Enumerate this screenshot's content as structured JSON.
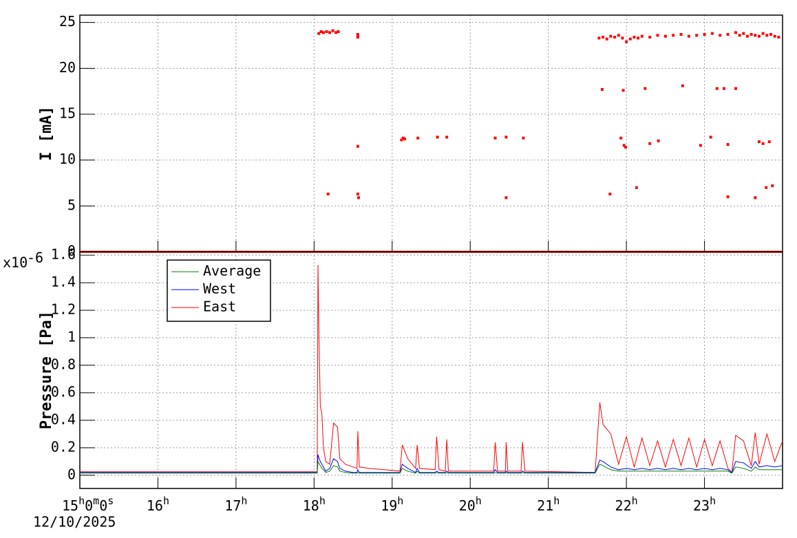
{
  "chart_data": [
    {
      "type": "scatter",
      "ylabel": "I [mA]",
      "xlim": [
        15,
        24
      ],
      "ylim": [
        0,
        25.8
      ],
      "xticks": [
        15,
        16,
        17,
        18,
        19,
        20,
        21,
        22,
        23
      ],
      "yticks": [
        0,
        5,
        10,
        15,
        20,
        25
      ],
      "grid": true,
      "series": [
        {
          "color": "#ff0000",
          "mode": "markers",
          "x": [
            18.06,
            18.09,
            18.12,
            18.16,
            18.2,
            18.24,
            18.28,
            18.31,
            18.56,
            18.56,
            18.18,
            18.56,
            18.56,
            18.57,
            19.12,
            19.14,
            19.16,
            19.33,
            19.58,
            19.7,
            20.32,
            20.46,
            20.46,
            20.68,
            21.69,
            21.79,
            21.93,
            21.96,
            21.97,
            21.99,
            22.13,
            22.24,
            22.3,
            22.41,
            22.72,
            22.95,
            23.08,
            23.16,
            23.25,
            23.3,
            23.3,
            23.4,
            23.65,
            23.7,
            23.75,
            23.79,
            23.83,
            23.87,
            21.65,
            21.7,
            21.75,
            21.8,
            21.85,
            21.9,
            21.95,
            22.0,
            22.05,
            22.1,
            22.15,
            22.2,
            22.3,
            22.4,
            22.5,
            22.6,
            22.7,
            22.8,
            22.9,
            23.0,
            23.1,
            23.2,
            23.3,
            23.4,
            23.45,
            23.5,
            23.55,
            23.6,
            23.65,
            23.7,
            23.75,
            23.8,
            23.85,
            23.9,
            23.95
          ],
          "values": [
            23.8,
            24.0,
            23.9,
            24.0,
            23.9,
            24.1,
            23.9,
            24.0,
            23.7,
            23.4,
            6.3,
            11.5,
            6.3,
            5.9,
            12.2,
            12.4,
            12.3,
            12.4,
            12.5,
            12.5,
            12.4,
            12.5,
            5.9,
            12.4,
            17.7,
            6.3,
            12.4,
            17.6,
            11.6,
            11.4,
            7.0,
            17.8,
            11.8,
            12.1,
            18.1,
            11.6,
            12.5,
            17.8,
            17.8,
            11.7,
            6.0,
            17.8,
            5.9,
            12.0,
            11.8,
            7.0,
            12.0,
            7.2,
            23.3,
            23.4,
            23.2,
            23.5,
            23.4,
            23.6,
            23.3,
            22.9,
            23.2,
            23.4,
            23.3,
            23.5,
            23.4,
            23.6,
            23.5,
            23.6,
            23.7,
            23.5,
            23.6,
            23.7,
            23.8,
            23.6,
            23.7,
            23.9,
            23.6,
            23.8,
            23.5,
            23.7,
            23.6,
            23.5,
            23.8,
            23.6,
            23.7,
            23.5,
            23.4
          ]
        },
        {
          "color": "#ff0000",
          "mode": "line",
          "x": [
            15,
            24
          ],
          "values": [
            0,
            0
          ]
        }
      ]
    },
    {
      "type": "line",
      "ylabel": "Pressure [Pa]",
      "y_multiplier": {
        "base": "x10",
        "exponent": "-6"
      },
      "date_label": "12/10/2025",
      "xlim": [
        15,
        24
      ],
      "ylim": [
        -0.096,
        1.625
      ],
      "xticks": [
        {
          "value": 15,
          "label": "15h0m0s"
        },
        {
          "value": 16,
          "label": "16h"
        },
        {
          "value": 17,
          "label": "17h"
        },
        {
          "value": 18,
          "label": "18h"
        },
        {
          "value": 19,
          "label": "19h"
        },
        {
          "value": 20,
          "label": "20h"
        },
        {
          "value": 21,
          "label": "21h"
        },
        {
          "value": 22,
          "label": "22h"
        },
        {
          "value": 23,
          "label": "23h"
        }
      ],
      "yticks": [
        0,
        0.2,
        0.4,
        0.6,
        0.8,
        1,
        1.2,
        1.4,
        1.6
      ],
      "grid": true,
      "legend": "top-left",
      "x": [
        15,
        16,
        17,
        18,
        18.04,
        18.05,
        18.06,
        18.08,
        18.1,
        18.12,
        18.15,
        18.2,
        18.25,
        18.3,
        18.33,
        18.4,
        18.5,
        18.55,
        18.56,
        18.58,
        18.7,
        18.9,
        19.1,
        19.13,
        19.2,
        19.3,
        19.32,
        19.35,
        19.55,
        19.57,
        19.6,
        19.68,
        19.7,
        19.72,
        20.3,
        20.32,
        20.35,
        20.45,
        20.46,
        20.48,
        20.65,
        20.67,
        20.7,
        21.6,
        21.66,
        21.7,
        21.8,
        21.9,
        22.0,
        22.1,
        22.2,
        22.3,
        22.4,
        22.5,
        22.6,
        22.7,
        22.8,
        22.9,
        23.0,
        23.1,
        23.2,
        23.3,
        23.35,
        23.4,
        23.5,
        23.6,
        23.65,
        23.7,
        23.8,
        23.9,
        24
      ],
      "series": [
        {
          "name": "Average",
          "color": "#008000",
          "values": [
            0.015,
            0.015,
            0.015,
            0.015,
            0.015,
            0.1,
            0.09,
            0.07,
            0.05,
            0.04,
            0.02,
            0.03,
            0.07,
            0.06,
            0.03,
            0.02,
            0.015,
            0.015,
            0.02,
            0.015,
            0.015,
            0.015,
            0.015,
            0.05,
            0.03,
            0.015,
            0.03,
            0.015,
            0.015,
            0.02,
            0.015,
            0.015,
            0.02,
            0.015,
            0.015,
            0.02,
            0.015,
            0.015,
            0.02,
            0.015,
            0.015,
            0.02,
            0.015,
            0.015,
            0.08,
            0.07,
            0.04,
            0.03,
            0.03,
            0.03,
            0.03,
            0.03,
            0.03,
            0.03,
            0.03,
            0.03,
            0.03,
            0.03,
            0.03,
            0.03,
            0.03,
            0.03,
            0.015,
            0.06,
            0.05,
            0.03,
            0.06,
            0.04,
            0.04,
            0.04,
            0.04
          ]
        },
        {
          "name": "West",
          "color": "#0000ff",
          "values": [
            0.02,
            0.02,
            0.02,
            0.02,
            0.02,
            0.15,
            0.13,
            0.1,
            0.08,
            0.06,
            0.03,
            0.05,
            0.12,
            0.1,
            0.05,
            0.03,
            0.02,
            0.02,
            0.04,
            0.02,
            0.02,
            0.02,
            0.02,
            0.08,
            0.05,
            0.02,
            0.05,
            0.02,
            0.02,
            0.03,
            0.02,
            0.02,
            0.03,
            0.02,
            0.02,
            0.04,
            0.02,
            0.02,
            0.03,
            0.02,
            0.02,
            0.03,
            0.02,
            0.02,
            0.11,
            0.1,
            0.06,
            0.04,
            0.05,
            0.04,
            0.05,
            0.04,
            0.05,
            0.04,
            0.05,
            0.04,
            0.05,
            0.04,
            0.05,
            0.04,
            0.05,
            0.04,
            0.02,
            0.1,
            0.09,
            0.05,
            0.1,
            0.06,
            0.07,
            0.06,
            0.07
          ]
        },
        {
          "name": "East",
          "color": "#ff0000",
          "values": [
            0.025,
            0.025,
            0.025,
            0.025,
            0.025,
            1.53,
            1.1,
            0.5,
            0.45,
            0.2,
            0.1,
            0.08,
            0.38,
            0.35,
            0.12,
            0.08,
            0.06,
            0.05,
            0.32,
            0.06,
            0.05,
            0.04,
            0.03,
            0.22,
            0.12,
            0.05,
            0.22,
            0.05,
            0.04,
            0.28,
            0.04,
            0.03,
            0.26,
            0.03,
            0.03,
            0.24,
            0.03,
            0.03,
            0.24,
            0.03,
            0.03,
            0.24,
            0.03,
            0.02,
            0.53,
            0.37,
            0.3,
            0.08,
            0.28,
            0.06,
            0.27,
            0.07,
            0.25,
            0.06,
            0.26,
            0.07,
            0.27,
            0.06,
            0.26,
            0.07,
            0.25,
            0.05,
            0.02,
            0.29,
            0.25,
            0.07,
            0.31,
            0.08,
            0.3,
            0.1,
            0.25
          ]
        }
      ]
    }
  ]
}
